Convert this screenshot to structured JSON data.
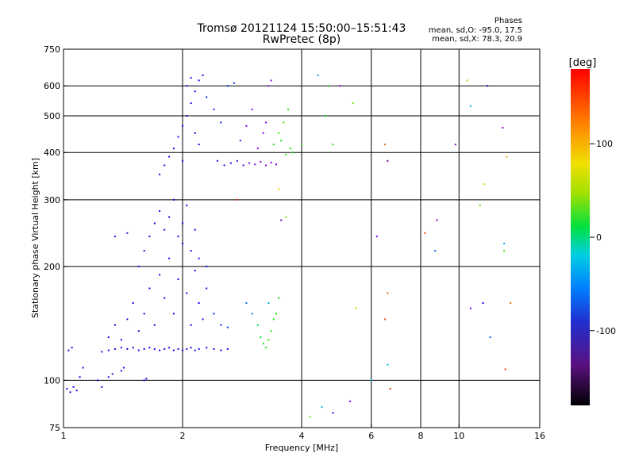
{
  "header": {
    "title": "Tromsø 20121124 15:50:00–15:51:43",
    "subtitle": "RwPretec (8p)",
    "phases_title": "Phases",
    "phases_line1": "mean, sd,O: -95.0, 17.5",
    "phases_line2": "mean, sd,X: 78.3, 20.9"
  },
  "colorbar": {
    "label": "[deg]",
    "ticks": [
      {
        "label": "100",
        "value": 100
      },
      {
        "label": "0",
        "value": 0
      },
      {
        "label": "-100",
        "value": -100
      }
    ],
    "range": [
      -180,
      180
    ]
  },
  "chart_data": {
    "type": "scatter",
    "xlabel": "Frequency [MHz]",
    "ylabel": "Stationary phase Virtual Height [km]",
    "x_scale": "log",
    "y_scale": "log",
    "xlim": [
      1,
      16
    ],
    "ylim": [
      75,
      750
    ],
    "x_ticks": [
      {
        "label": "1",
        "value": 1
      },
      {
        "label": "2",
        "value": 2
      },
      {
        "label": "4",
        "value": 4
      },
      {
        "label": "6",
        "value": 6
      },
      {
        "label": "8",
        "value": 8
      },
      {
        "label": "10",
        "value": 10
      },
      {
        "label": "16",
        "value": 16
      }
    ],
    "y_ticks": [
      {
        "label": "750",
        "value": 750
      },
      {
        "label": "600",
        "value": 600
      },
      {
        "label": "500",
        "value": 500
      },
      {
        "label": "400",
        "value": 400
      },
      {
        "label": "300",
        "value": 300
      },
      {
        "label": "200",
        "value": 200
      },
      {
        "label": "100",
        "value": 100
      },
      {
        "label": "75",
        "value": 75
      }
    ],
    "grid_x": [
      2,
      4,
      6,
      8,
      10
    ],
    "grid_y": [
      100,
      200,
      300,
      400,
      500,
      600
    ],
    "series": [
      {
        "points": [
          [
            1.02,
            95,
            -100
          ],
          [
            1.04,
            93,
            -98
          ],
          [
            1.06,
            96,
            -102
          ],
          [
            1.08,
            94,
            -100
          ],
          [
            1.1,
            102,
            -95
          ],
          [
            1.12,
            108,
            -98
          ],
          [
            1.03,
            120,
            -92
          ],
          [
            1.05,
            122,
            -95
          ],
          [
            1.22,
            100,
            -100
          ],
          [
            1.25,
            96,
            -98
          ],
          [
            1.3,
            102,
            -110
          ],
          [
            1.33,
            104,
            -108
          ],
          [
            1.4,
            106,
            -105
          ],
          [
            1.42,
            108,
            -100
          ],
          [
            1.6,
            100,
            -100
          ],
          [
            1.62,
            101,
            -98
          ],
          [
            1.25,
            119,
            -105
          ],
          [
            1.3,
            120,
            -100
          ],
          [
            1.35,
            121,
            -98
          ],
          [
            1.4,
            122,
            -102
          ],
          [
            1.45,
            121,
            -100
          ],
          [
            1.5,
            122,
            -100
          ],
          [
            1.55,
            120,
            -99
          ],
          [
            1.6,
            121,
            -101
          ],
          [
            1.65,
            122,
            -100
          ],
          [
            1.7,
            121,
            -100
          ],
          [
            1.75,
            120,
            -98
          ],
          [
            1.8,
            121,
            -100
          ],
          [
            1.85,
            122,
            -101
          ],
          [
            1.9,
            120,
            -100
          ],
          [
            1.95,
            121,
            -99
          ],
          [
            2.0,
            120,
            -100
          ],
          [
            2.05,
            121,
            -97
          ],
          [
            2.1,
            122,
            -98
          ],
          [
            2.15,
            120,
            -96
          ],
          [
            2.2,
            121,
            -95
          ],
          [
            2.3,
            122,
            -95
          ],
          [
            2.4,
            121,
            -92
          ],
          [
            2.5,
            120,
            -90
          ],
          [
            2.6,
            121,
            -88
          ],
          [
            1.3,
            130,
            -105
          ],
          [
            1.35,
            140,
            -102
          ],
          [
            1.4,
            128,
            -100
          ],
          [
            1.45,
            145,
            -103
          ],
          [
            1.5,
            160,
            -100
          ],
          [
            1.55,
            135,
            -98
          ],
          [
            1.6,
            150,
            -100
          ],
          [
            1.65,
            175,
            -102
          ],
          [
            1.7,
            140,
            -100
          ],
          [
            1.75,
            190,
            -98
          ],
          [
            1.8,
            165,
            -102
          ],
          [
            1.85,
            210,
            -100
          ],
          [
            1.9,
            150,
            -98
          ],
          [
            1.95,
            185,
            -100
          ],
          [
            2.0,
            230,
            -100
          ],
          [
            2.05,
            170,
            -96
          ],
          [
            2.1,
            140,
            -94
          ],
          [
            2.15,
            195,
            -92
          ],
          [
            2.2,
            160,
            -92
          ],
          [
            2.25,
            145,
            -88
          ],
          [
            2.3,
            175,
            -85
          ],
          [
            2.4,
            150,
            -82
          ],
          [
            2.5,
            140,
            -80
          ],
          [
            2.6,
            138,
            -78
          ],
          [
            1.55,
            200,
            -100
          ],
          [
            1.6,
            220,
            -98
          ],
          [
            1.65,
            240,
            -102
          ],
          [
            1.7,
            260,
            -100
          ],
          [
            1.75,
            280,
            -100
          ],
          [
            1.8,
            250,
            -98
          ],
          [
            1.85,
            270,
            -100
          ],
          [
            1.9,
            300,
            -98
          ],
          [
            1.95,
            240,
            -100
          ],
          [
            2.0,
            260,
            -98
          ],
          [
            2.05,
            290,
            -96
          ],
          [
            2.1,
            220,
            -95
          ],
          [
            2.15,
            250,
            -92
          ],
          [
            2.2,
            210,
            -88
          ],
          [
            2.3,
            200,
            -85
          ],
          [
            1.45,
            245,
            -108
          ],
          [
            1.35,
            240,
            -110
          ],
          [
            1.75,
            350,
            -100
          ],
          [
            1.8,
            370,
            -98
          ],
          [
            1.85,
            390,
            -100
          ],
          [
            1.9,
            410,
            -98
          ],
          [
            1.95,
            440,
            -100
          ],
          [
            2.0,
            470,
            -98
          ],
          [
            2.05,
            500,
            -100
          ],
          [
            2.1,
            540,
            -98
          ],
          [
            2.15,
            580,
            -96
          ],
          [
            2.2,
            620,
            -95
          ],
          [
            2.25,
            640,
            -90
          ],
          [
            2.05,
            600,
            -100
          ],
          [
            2.1,
            630,
            -98
          ],
          [
            2.15,
            450,
            -96
          ],
          [
            2.2,
            420,
            -92
          ],
          [
            2.0,
            380,
            -100
          ],
          [
            2.3,
            560,
            -85
          ],
          [
            2.4,
            520,
            -82
          ],
          [
            2.5,
            480,
            -80
          ],
          [
            2.6,
            600,
            -80
          ],
          [
            2.7,
            610,
            -78
          ],
          [
            2.45,
            380,
            -110
          ],
          [
            2.55,
            370,
            -112
          ],
          [
            2.65,
            375,
            -110
          ],
          [
            2.75,
            380,
            -115
          ],
          [
            2.85,
            370,
            -120
          ],
          [
            2.95,
            375,
            -125
          ],
          [
            3.05,
            372,
            -128
          ],
          [
            3.15,
            378,
            -130
          ],
          [
            3.25,
            370,
            -132
          ],
          [
            3.35,
            376,
            -128
          ],
          [
            3.45,
            372,
            -125
          ],
          [
            2.8,
            430,
            -118
          ],
          [
            2.9,
            470,
            -122
          ],
          [
            3.0,
            520,
            -125
          ],
          [
            3.1,
            410,
            -128
          ],
          [
            3.2,
            450,
            -130
          ],
          [
            3.3,
            600,
            -130
          ],
          [
            3.35,
            620,
            -132
          ],
          [
            3.25,
            480,
            -128
          ],
          [
            3.4,
            420,
            50
          ],
          [
            3.5,
            450,
            55
          ],
          [
            3.6,
            480,
            60
          ],
          [
            3.7,
            520,
            52
          ],
          [
            3.8,
            400,
            48
          ],
          [
            3.65,
            395,
            55
          ],
          [
            3.75,
            410,
            50
          ],
          [
            3.55,
            430,
            45
          ],
          [
            4.0,
            420,
            60
          ],
          [
            2.9,
            160,
            -60
          ],
          [
            3.0,
            150,
            -55
          ],
          [
            3.1,
            140,
            20
          ],
          [
            3.15,
            130,
            40
          ],
          [
            3.2,
            125,
            48
          ],
          [
            3.25,
            122,
            52
          ],
          [
            3.3,
            128,
            55
          ],
          [
            3.35,
            135,
            50
          ],
          [
            3.4,
            145,
            45
          ],
          [
            3.45,
            150,
            50
          ],
          [
            3.3,
            160,
            -40
          ],
          [
            3.5,
            165,
            50
          ],
          [
            4.4,
            640,
            -50
          ],
          [
            4.7,
            600,
            50
          ],
          [
            5.0,
            600,
            -130
          ],
          [
            5.4,
            540,
            80
          ],
          [
            4.6,
            500,
            45
          ],
          [
            4.8,
            420,
            55
          ],
          [
            2.75,
            300,
            170
          ],
          [
            3.5,
            320,
            120
          ],
          [
            3.65,
            270,
            80
          ],
          [
            3.55,
            265,
            -150
          ],
          [
            6.2,
            240,
            -120
          ],
          [
            6.5,
            420,
            150
          ],
          [
            6.6,
            380,
            -150
          ],
          [
            6.6,
            170,
            150
          ],
          [
            6.5,
            145,
            160
          ],
          [
            6.6,
            110,
            -40
          ],
          [
            6.7,
            95,
            160
          ],
          [
            5.5,
            155,
            120
          ],
          [
            6.0,
            100,
            -40
          ],
          [
            8.2,
            245,
            160
          ],
          [
            8.8,
            265,
            -140
          ],
          [
            8.7,
            220,
            -60
          ],
          [
            9.8,
            420,
            -130
          ],
          [
            10.5,
            620,
            90
          ],
          [
            10.7,
            530,
            -40
          ],
          [
            11.3,
            290,
            70
          ],
          [
            11.6,
            330,
            100
          ],
          [
            12.9,
            465,
            -140
          ],
          [
            13.2,
            390,
            130
          ],
          [
            13.0,
            230,
            -40
          ],
          [
            13.0,
            220,
            60
          ],
          [
            11.5,
            160,
            -90
          ],
          [
            12.0,
            130,
            -60
          ],
          [
            10.7,
            155,
            -120
          ],
          [
            13.5,
            160,
            150
          ],
          [
            13.1,
            107,
            160
          ],
          [
            11.8,
            600,
            -100
          ],
          [
            4.2,
            80,
            75
          ],
          [
            4.5,
            85,
            -40
          ],
          [
            4.8,
            82,
            -100
          ],
          [
            5.3,
            88,
            -130
          ]
        ]
      }
    ]
  }
}
